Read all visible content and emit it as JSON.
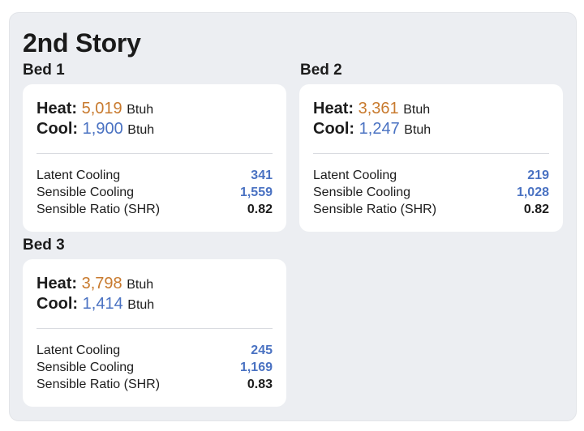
{
  "section_title": "2nd Story",
  "labels": {
    "heat": "Heat:",
    "cool": "Cool:",
    "unit": "Btuh",
    "latent": "Latent Cooling",
    "sensible": "Sensible Cooling",
    "ratio": "Sensible Ratio (SHR)"
  },
  "colors": {
    "heat": "#c87a2e",
    "cool": "#4a72c2",
    "panel_bg": "#eceef2",
    "card_bg": "#ffffff"
  },
  "rooms": [
    {
      "name": "Bed 1",
      "heat": "5,019",
      "cool": "1,900",
      "latent": "341",
      "sensible": "1,559",
      "shr": "0.82"
    },
    {
      "name": "Bed 2",
      "heat": "3,361",
      "cool": "1,247",
      "latent": "219",
      "sensible": "1,028",
      "shr": "0.82"
    },
    {
      "name": "Bed 3",
      "heat": "3,798",
      "cool": "1,414",
      "latent": "245",
      "sensible": "1,169",
      "shr": "0.83"
    }
  ]
}
